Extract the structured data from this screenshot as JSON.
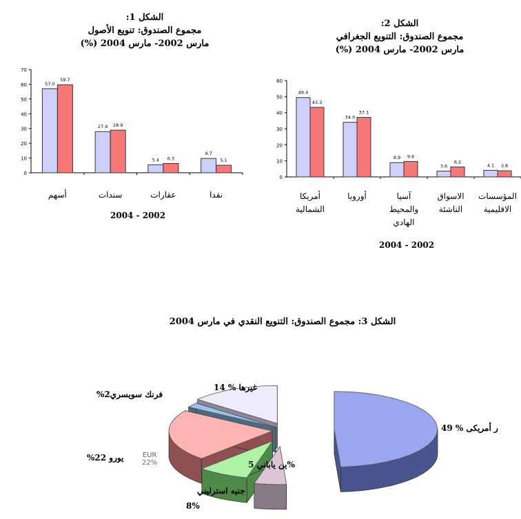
{
  "chart_data": [
    {
      "type": "bar",
      "title_lines": [
        "الشكل 1:",
        "مجموع الصندوق:  تنويع الأصول",
        "مارس 2002- مارس  2004 (%)"
      ],
      "categories": [
        "أسهم",
        "سندات",
        "عقارات",
        "نقدا"
      ],
      "series": [
        {
          "values": [
            57.0,
            27.9,
            5.4,
            9.7
          ],
          "color": "#ccd0fa"
        },
        {
          "values": [
            59.7,
            28.9,
            6.3,
            5.1
          ],
          "color": "#f87878"
        }
      ],
      "data_labels": [
        [
          "57.0",
          "27.9",
          "5.4",
          "9.7"
        ],
        [
          "59.7",
          "28.9",
          "6.3",
          "5.1"
        ]
      ],
      "xlabel": "2004 - 2002",
      "ylim": [
        0,
        70
      ],
      "yticks": [
        0,
        10,
        20,
        30,
        40,
        50,
        60,
        70
      ],
      "grid": false
    },
    {
      "type": "bar",
      "title_lines": [
        "الشكل 2:",
        "مجموع الصندوق: التنويع الجغرافي",
        "مارس 2002- مارس 2004 (%)"
      ],
      "categories": [
        [
          "أمريكا",
          "الشمالية"
        ],
        [
          "أوروبا"
        ],
        [
          "آسيا",
          "والمحيط",
          "الهادي"
        ],
        [
          "الاسواق",
          "الناشئة"
        ],
        [
          "المؤسسات",
          "الاقليمية"
        ]
      ],
      "series": [
        {
          "values": [
            49.4,
            34.0,
            8.9,
            3.6,
            4.1
          ],
          "color": "#ccd0fa"
        },
        {
          "values": [
            43.3,
            37.1,
            9.6,
            6.2,
            3.8
          ],
          "color": "#f87878"
        }
      ],
      "data_labels": [
        [
          "49.4",
          "34.0",
          "8.9",
          "3.6",
          "4.1"
        ],
        [
          "43.3",
          "37.1",
          "9.6",
          "6.2",
          "3.8"
        ]
      ],
      "xlabel": "2004 - 2002",
      "ylim": [
        0,
        60
      ],
      "yticks": [
        0,
        10,
        20,
        30,
        40,
        50,
        60
      ],
      "grid": false
    },
    {
      "type": "pie",
      "title": "الشكل 3: مجموع الصندوق: التنويع النقدي في مارس 2004",
      "style": "3d-exploded",
      "slices": [
        {
          "label": "ر أمريكى % 49",
          "value": 49,
          "top": "#9aa6f0",
          "side": "#4a5590"
        },
        {
          "label": "ين ياباني 5%",
          "value": 5,
          "top": "#dcc6d6",
          "side": "#8a7a88"
        },
        {
          "label": "جنيه استرليني",
          "label2": "8%",
          "value": 8,
          "top": "#aef2a6",
          "side": "#4e8a4a"
        },
        {
          "label": "يورو 22%",
          "value": 22,
          "top": "#ffb4b4",
          "side": "#8e5050",
          "inner_label": "EUR",
          "inner_label2": "22%"
        },
        {
          "label": "فرنك  سويسري2%",
          "value": 2,
          "top": "#9cc0ee",
          "side": "#4a6a80"
        },
        {
          "label": "غيرها % 14",
          "value": 14,
          "top": "#efeafc",
          "side": "#8a8a96"
        }
      ]
    }
  ]
}
